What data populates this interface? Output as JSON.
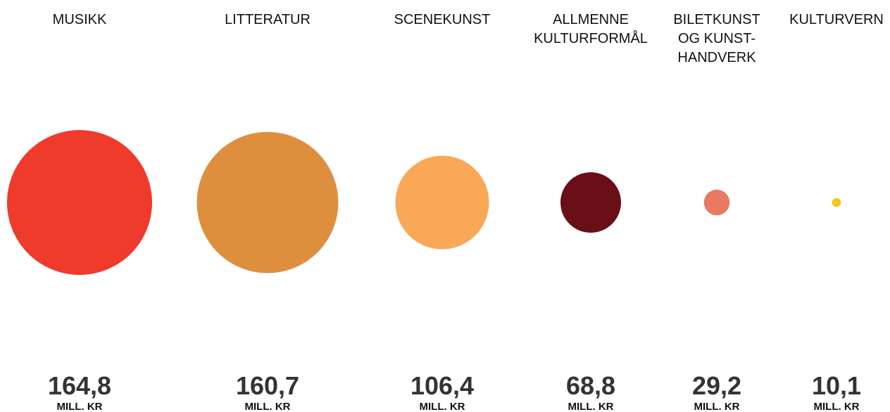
{
  "chart_data": {
    "type": "bubble",
    "categories": [
      [
        "MUSIKK"
      ],
      [
        "LITTERATUR"
      ],
      [
        "SCENEKUNST"
      ],
      [
        "ALLMENNE",
        "KULTURFORMÅL"
      ],
      [
        "BILETKUNST",
        "OG KUNST-",
        "HANDVERK"
      ],
      [
        "KULTURVERN"
      ]
    ],
    "values": [
      164.8,
      160.7,
      106.4,
      68.8,
      29.2,
      10.1
    ],
    "value_labels": [
      "164,8",
      "160,7",
      "106,4",
      "68,8",
      "29,2",
      "10,1"
    ],
    "unit": "MILL. KR",
    "colors": [
      "#ee3b2b",
      "#de8f3e",
      "#f8a856",
      "#6a0e17",
      "#e97961",
      "#f5c518"
    ]
  }
}
